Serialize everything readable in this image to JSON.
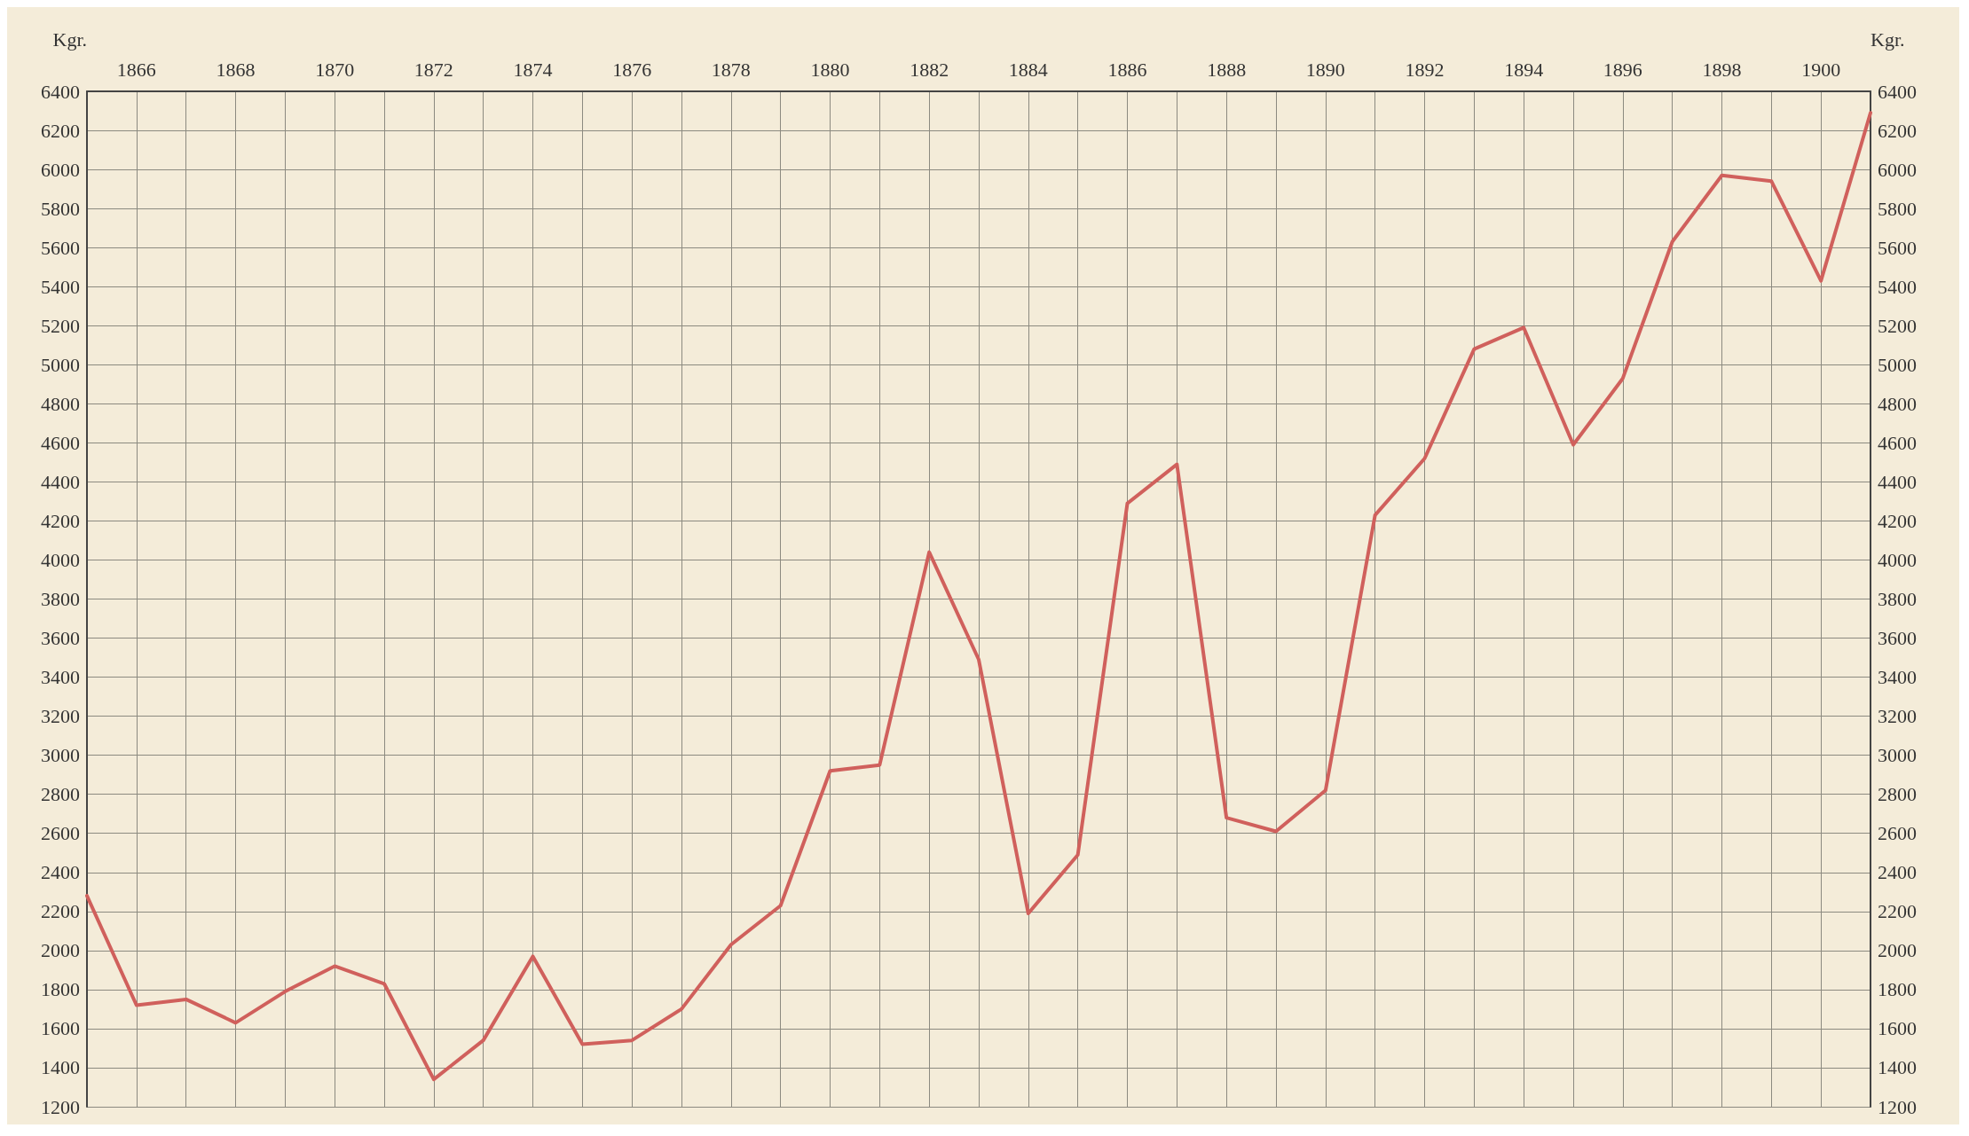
{
  "chart_data": {
    "type": "line",
    "ylabel": "Kgr.",
    "y2label": "Kgr.",
    "x": [
      1865,
      1866,
      1867,
      1868,
      1869,
      1870,
      1871,
      1872,
      1873,
      1874,
      1875,
      1876,
      1877,
      1878,
      1879,
      1880,
      1881,
      1882,
      1883,
      1884,
      1885,
      1886,
      1887,
      1888,
      1889,
      1890,
      1891,
      1892,
      1893,
      1894,
      1895,
      1896,
      1897,
      1898,
      1899,
      1900,
      1901
    ],
    "series": [
      {
        "color": "#d0605c",
        "values": [
          2280,
          1720,
          1750,
          1630,
          1790,
          1920,
          1830,
          1340,
          1540,
          1970,
          1520,
          1540,
          1700,
          2030,
          2230,
          2920,
          2950,
          4040,
          3490,
          2190,
          2490,
          4290,
          4490,
          2680,
          2610,
          2820,
          4230,
          4520,
          5080,
          5190,
          4590,
          4930,
          5630,
          5970,
          5940,
          5430,
          6290
        ]
      }
    ],
    "xlim": [
      1865,
      1901
    ],
    "xticks": [
      {
        "value": 1865,
        "label": null
      },
      1866,
      {
        "value": 1867,
        "label": null
      },
      1868,
      {
        "value": 1869,
        "label": null
      },
      1870,
      {
        "value": 1871,
        "label": null
      },
      1872,
      {
        "value": 1873,
        "label": null
      },
      1874,
      {
        "value": 1875,
        "label": null
      },
      1876,
      {
        "value": 1877,
        "label": null
      },
      1878,
      {
        "value": 1879,
        "label": null
      },
      1880,
      {
        "value": 1881,
        "label": null
      },
      1882,
      {
        "value": 1883,
        "label": null
      },
      1884,
      {
        "value": 1885,
        "label": null
      },
      1886,
      {
        "value": 1887,
        "label": null
      },
      1888,
      {
        "value": 1889,
        "label": null
      },
      1890,
      {
        "value": 1891,
        "label": null
      },
      1892,
      {
        "value": 1893,
        "label": null
      },
      1894,
      {
        "value": 1895,
        "label": null
      },
      1896,
      {
        "value": 1897,
        "label": null
      },
      1898,
      {
        "value": 1899,
        "label": null
      },
      1900,
      {
        "value": 1901,
        "label": null
      }
    ],
    "ylim": [
      1200,
      6400
    ],
    "yticks": [
      1200,
      1400,
      1600,
      1800,
      2000,
      2200,
      2400,
      2600,
      2800,
      3000,
      3200,
      3400,
      3600,
      3800,
      4000,
      4200,
      4400,
      4600,
      4800,
      5000,
      5200,
      5400,
      5600,
      5800,
      6000,
      6200,
      6400
    ],
    "y2lim": [
      1200,
      6400
    ],
    "y2ticks": [
      1200,
      1400,
      1600,
      1800,
      2000,
      2200,
      2400,
      2600,
      2800,
      3000,
      3200,
      3400,
      3600,
      3800,
      4000,
      4200,
      4400,
      4600,
      4800,
      5000,
      5200,
      5400,
      5600,
      5800,
      6000,
      6200,
      6400
    ],
    "grid": true,
    "marker": "none",
    "line_style": "solid"
  }
}
